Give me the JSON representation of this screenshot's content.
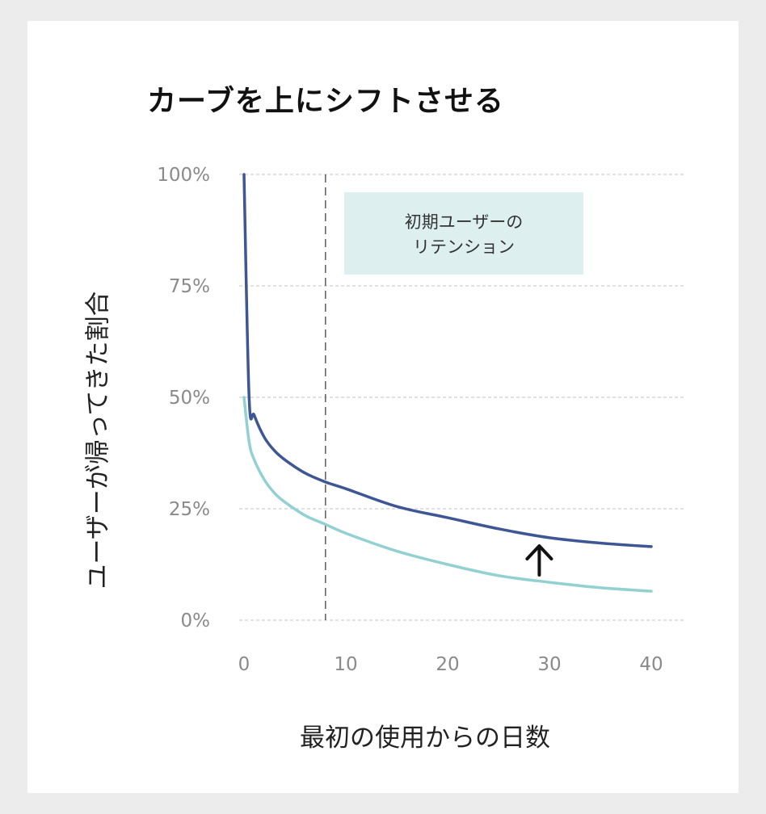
{
  "chart_data": {
    "type": "line",
    "title": "カーブを上にシフトさせる",
    "xlabel": "最初の使用からの日数",
    "ylabel": "ユーザーが帰ってきた割合",
    "x_ticks": [
      0,
      10,
      20,
      30,
      40
    ],
    "y_ticks": [
      "0%",
      "25%",
      "50%",
      "75%",
      "100%"
    ],
    "y_tick_values": [
      0,
      25,
      50,
      75,
      100
    ],
    "xlim": [
      0,
      40
    ],
    "ylim": [
      0,
      100
    ],
    "grid": "horizontal dashed",
    "series": [
      {
        "color": "#3e5694",
        "x": [
          0,
          0.5,
          1,
          2,
          3,
          4,
          6,
          8,
          10,
          15,
          20,
          25,
          30,
          35,
          40
        ],
        "y": [
          100,
          50,
          46,
          41,
          38,
          36,
          33,
          31,
          29.5,
          25.5,
          23,
          20.5,
          18.5,
          17.3,
          16.5
        ]
      },
      {
        "color": "#93d0d2",
        "x": [
          0,
          0.5,
          1,
          2,
          3,
          4,
          6,
          8,
          10,
          15,
          20,
          25,
          30,
          35,
          40
        ],
        "y": [
          50,
          40,
          36,
          31.5,
          28.5,
          26.5,
          23.5,
          21.5,
          19.5,
          15.5,
          12.5,
          10,
          8.5,
          7.3,
          6.5
        ]
      }
    ],
    "vertical_marker": {
      "x": 8,
      "style": "dashed"
    },
    "annotation": {
      "lines": [
        "初期ユーザーの",
        "リテンション"
      ],
      "color": "#ddefef"
    },
    "arrow": {
      "x": 29,
      "direction": "up"
    }
  }
}
